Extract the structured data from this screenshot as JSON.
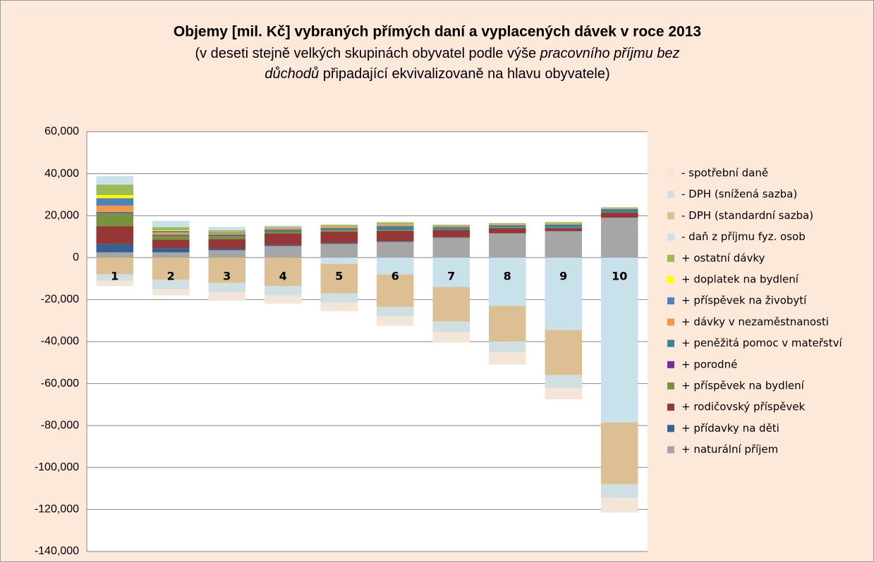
{
  "chart_data": {
    "type": "stacked_bar",
    "title": "Objemy [mil. Kč] vybraných přímých daní a vyplacených dávek  v roce 2013",
    "subtitle": [
      "(v deseti stejně velkých skupinách obyvatel podle výše ",
      "pracovního příjmu bez",
      "důchodů",
      "připadající ekvivalizovaně na hlavu obyvatele)"
    ],
    "categories": [
      "1",
      "2",
      "3",
      "4",
      "5",
      "6",
      "7",
      "8",
      "9",
      "10"
    ],
    "ylim": [
      -140000,
      60000
    ],
    "yticks": [
      {
        "value": -140000,
        "label": "-140,000"
      },
      {
        "value": -120000,
        "label": "-120,000"
      },
      {
        "value": -100000,
        "label": "-100,000"
      },
      {
        "value": -80000,
        "label": "-80,000"
      },
      {
        "value": -60000,
        "label": "-60,000"
      },
      {
        "value": -40000,
        "label": "-40,000"
      },
      {
        "value": -20000,
        "label": "-20,000"
      },
      0,
      {
        "value": 20000,
        "label": "20,000"
      },
      {
        "value": 40000,
        "label": "40,000"
      },
      {
        "value": 60000,
        "label": "60,000"
      }
    ],
    "grid": true,
    "series": [
      {
        "name": "- spotřební daně",
        "color": "#f3e6d8",
        "values": [
          -2500,
          -3000,
          -4000,
          -4000,
          -4000,
          -4500,
          -5000,
          -6000,
          -5500,
          -7000
        ]
      },
      {
        "name": "- DPH (snížená sazba)",
        "color": "#cfdfe2",
        "values": [
          -3000,
          -4500,
          -4500,
          -4500,
          -4500,
          -4500,
          -5000,
          -5000,
          -6000,
          -6500
        ]
      },
      {
        "name": "- DPH (standardní sazba)",
        "color": "#dcbf92",
        "values": [
          -8000,
          -10500,
          -12000,
          -13500,
          -14000,
          -15500,
          -16500,
          -17000,
          -21500,
          -29500
        ]
      },
      {
        "name": "- daň z příjmu fyz. osob",
        "color": "#c8e1ea",
        "values": [
          4000,
          3000,
          1500,
          500,
          -3000,
          -8000,
          -14000,
          -23000,
          -34500,
          -78500
        ]
      },
      {
        "name": "+ ostatní dávky",
        "color": "#9bbb59",
        "values": [
          5000,
          1500,
          1000,
          400,
          700,
          900,
          500,
          500,
          600,
          500
        ]
      },
      {
        "name": "+ doplatek na bydlení",
        "color": "#ffff00",
        "values": [
          1500,
          300,
          100,
          100,
          50,
          50,
          0,
          0,
          0,
          0
        ]
      },
      {
        "name": "+ příspěvek na živobytí",
        "color": "#4f81bd",
        "values": [
          3500,
          700,
          300,
          200,
          100,
          100,
          50,
          50,
          0,
          0
        ]
      },
      {
        "name": "+ dávky v nezaměstnanosti",
        "color": "#f79646",
        "values": [
          3000,
          1000,
          700,
          700,
          700,
          800,
          500,
          500,
          500,
          300
        ]
      },
      {
        "name": "+ peněžitá pomoc v mateřství",
        "color": "#31859c",
        "values": [
          500,
          300,
          500,
          700,
          800,
          1500,
          1000,
          1000,
          1500,
          1500
        ]
      },
      {
        "name": "+ porodné",
        "color": "#7030a0",
        "values": [
          300,
          200,
          200,
          200,
          200,
          200,
          100,
          100,
          100,
          50
        ]
      },
      {
        "name": "+ příspěvek na bydlení",
        "color": "#77933c",
        "values": [
          6000,
          2000,
          1500,
          1000,
          700,
          500,
          300,
          200,
          100,
          50
        ]
      },
      {
        "name": "+ rodičovský příspěvek",
        "color": "#953735",
        "values": [
          8500,
          4000,
          4500,
          5500,
          5500,
          5000,
          3500,
          2500,
          1500,
          2500
        ]
      },
      {
        "name": "+ přídavky na děti",
        "color": "#376092",
        "values": [
          4000,
          2000,
          800,
          500,
          400,
          300,
          200,
          100,
          100,
          50
        ]
      },
      {
        "name": "+ naturální příjem",
        "color": "#a6a6a6",
        "values": [
          2500,
          2500,
          3500,
          5500,
          6500,
          7500,
          9500,
          11500,
          12500,
          19000
        ]
      }
    ]
  }
}
